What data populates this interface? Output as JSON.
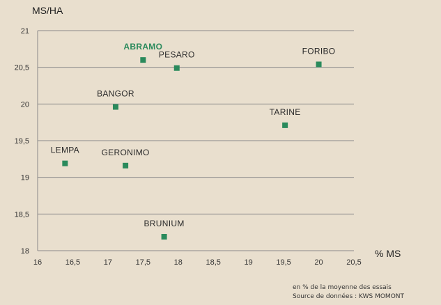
{
  "chart_data": {
    "type": "scatter",
    "title": "",
    "xlabel": "% MS",
    "ylabel": "MS/HA",
    "xlim": [
      16,
      20.5
    ],
    "ylim": [
      18,
      21
    ],
    "xticks": [
      "16",
      "16,5",
      "17",
      "17,5",
      "18",
      "18,5",
      "19",
      "19,5",
      "20",
      "20,5"
    ],
    "yticks": [
      "18",
      "18,5",
      "19",
      "19,5",
      "20",
      "20,5",
      "21"
    ],
    "grid": "horizontal",
    "colors": {
      "marker": "#2a8a5c",
      "highlight_label": "#2a8a5c",
      "grid": "#8a8a8a"
    },
    "points": [
      {
        "label": "ABRAMO",
        "x": 17.5,
        "y": 20.6,
        "highlight": true
      },
      {
        "label": "PESARO",
        "x": 17.98,
        "y": 20.49,
        "highlight": false
      },
      {
        "label": "FORIBO",
        "x": 20.0,
        "y": 20.54,
        "highlight": false
      },
      {
        "label": "BANGOR",
        "x": 17.11,
        "y": 19.96,
        "highlight": false
      },
      {
        "label": "TARINE",
        "x": 19.52,
        "y": 19.71,
        "highlight": false
      },
      {
        "label": "LEMPA",
        "x": 16.39,
        "y": 19.19,
        "highlight": false
      },
      {
        "label": "GERONIMO",
        "x": 17.25,
        "y": 19.16,
        "highlight": false
      },
      {
        "label": "BRUNIUM",
        "x": 17.8,
        "y": 18.19,
        "highlight": false
      }
    ]
  },
  "footnotes": {
    "line1": "en % de la moyenne des essais",
    "line2": "Source de données : KWS MOMONT"
  }
}
